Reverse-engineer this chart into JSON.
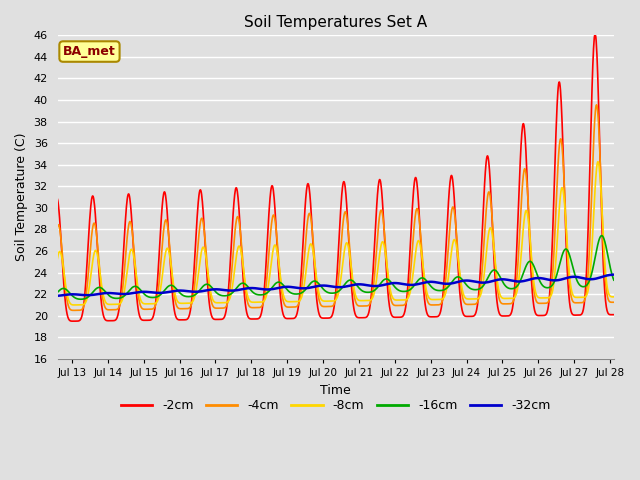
{
  "title": "Soil Temperatures Set A",
  "xlabel": "Time",
  "ylabel": "Soil Temperature (C)",
  "ylim": [
    16,
    46
  ],
  "yticks": [
    16,
    18,
    20,
    22,
    24,
    26,
    28,
    30,
    32,
    34,
    36,
    38,
    40,
    42,
    44,
    46
  ],
  "annotation_text": "BA_met",
  "annotation_color": "#8B0000",
  "annotation_bg": "#FFFF99",
  "annotation_border": "#AA8800",
  "series_labels": [
    "-2cm",
    "-4cm",
    "-8cm",
    "-16cm",
    "-32cm"
  ],
  "series_colors": [
    "#FF0000",
    "#FF8C00",
    "#FFD700",
    "#00AA00",
    "#0000CC"
  ],
  "series_linewidths": [
    1.2,
    1.2,
    1.2,
    1.2,
    1.8
  ],
  "bg_color": "#E0E0E0",
  "grid_color": "#FFFFFF",
  "x_start": 13,
  "x_end": 28,
  "xtick_positions": [
    13,
    14,
    15,
    16,
    17,
    18,
    19,
    20,
    21,
    22,
    23,
    24,
    25,
    26,
    27,
    28
  ],
  "xtick_labels": [
    "Jul 13",
    "Jul 14",
    "Jul 15",
    "Jul 16",
    "Jul 17",
    "Jul 18",
    "Jul 19",
    "Jul 20",
    "Jul 21",
    "Jul 22",
    "Jul 23",
    "Jul 24",
    "Jul 25",
    "Jul 26",
    "Jul 27",
    "Jul 28"
  ]
}
